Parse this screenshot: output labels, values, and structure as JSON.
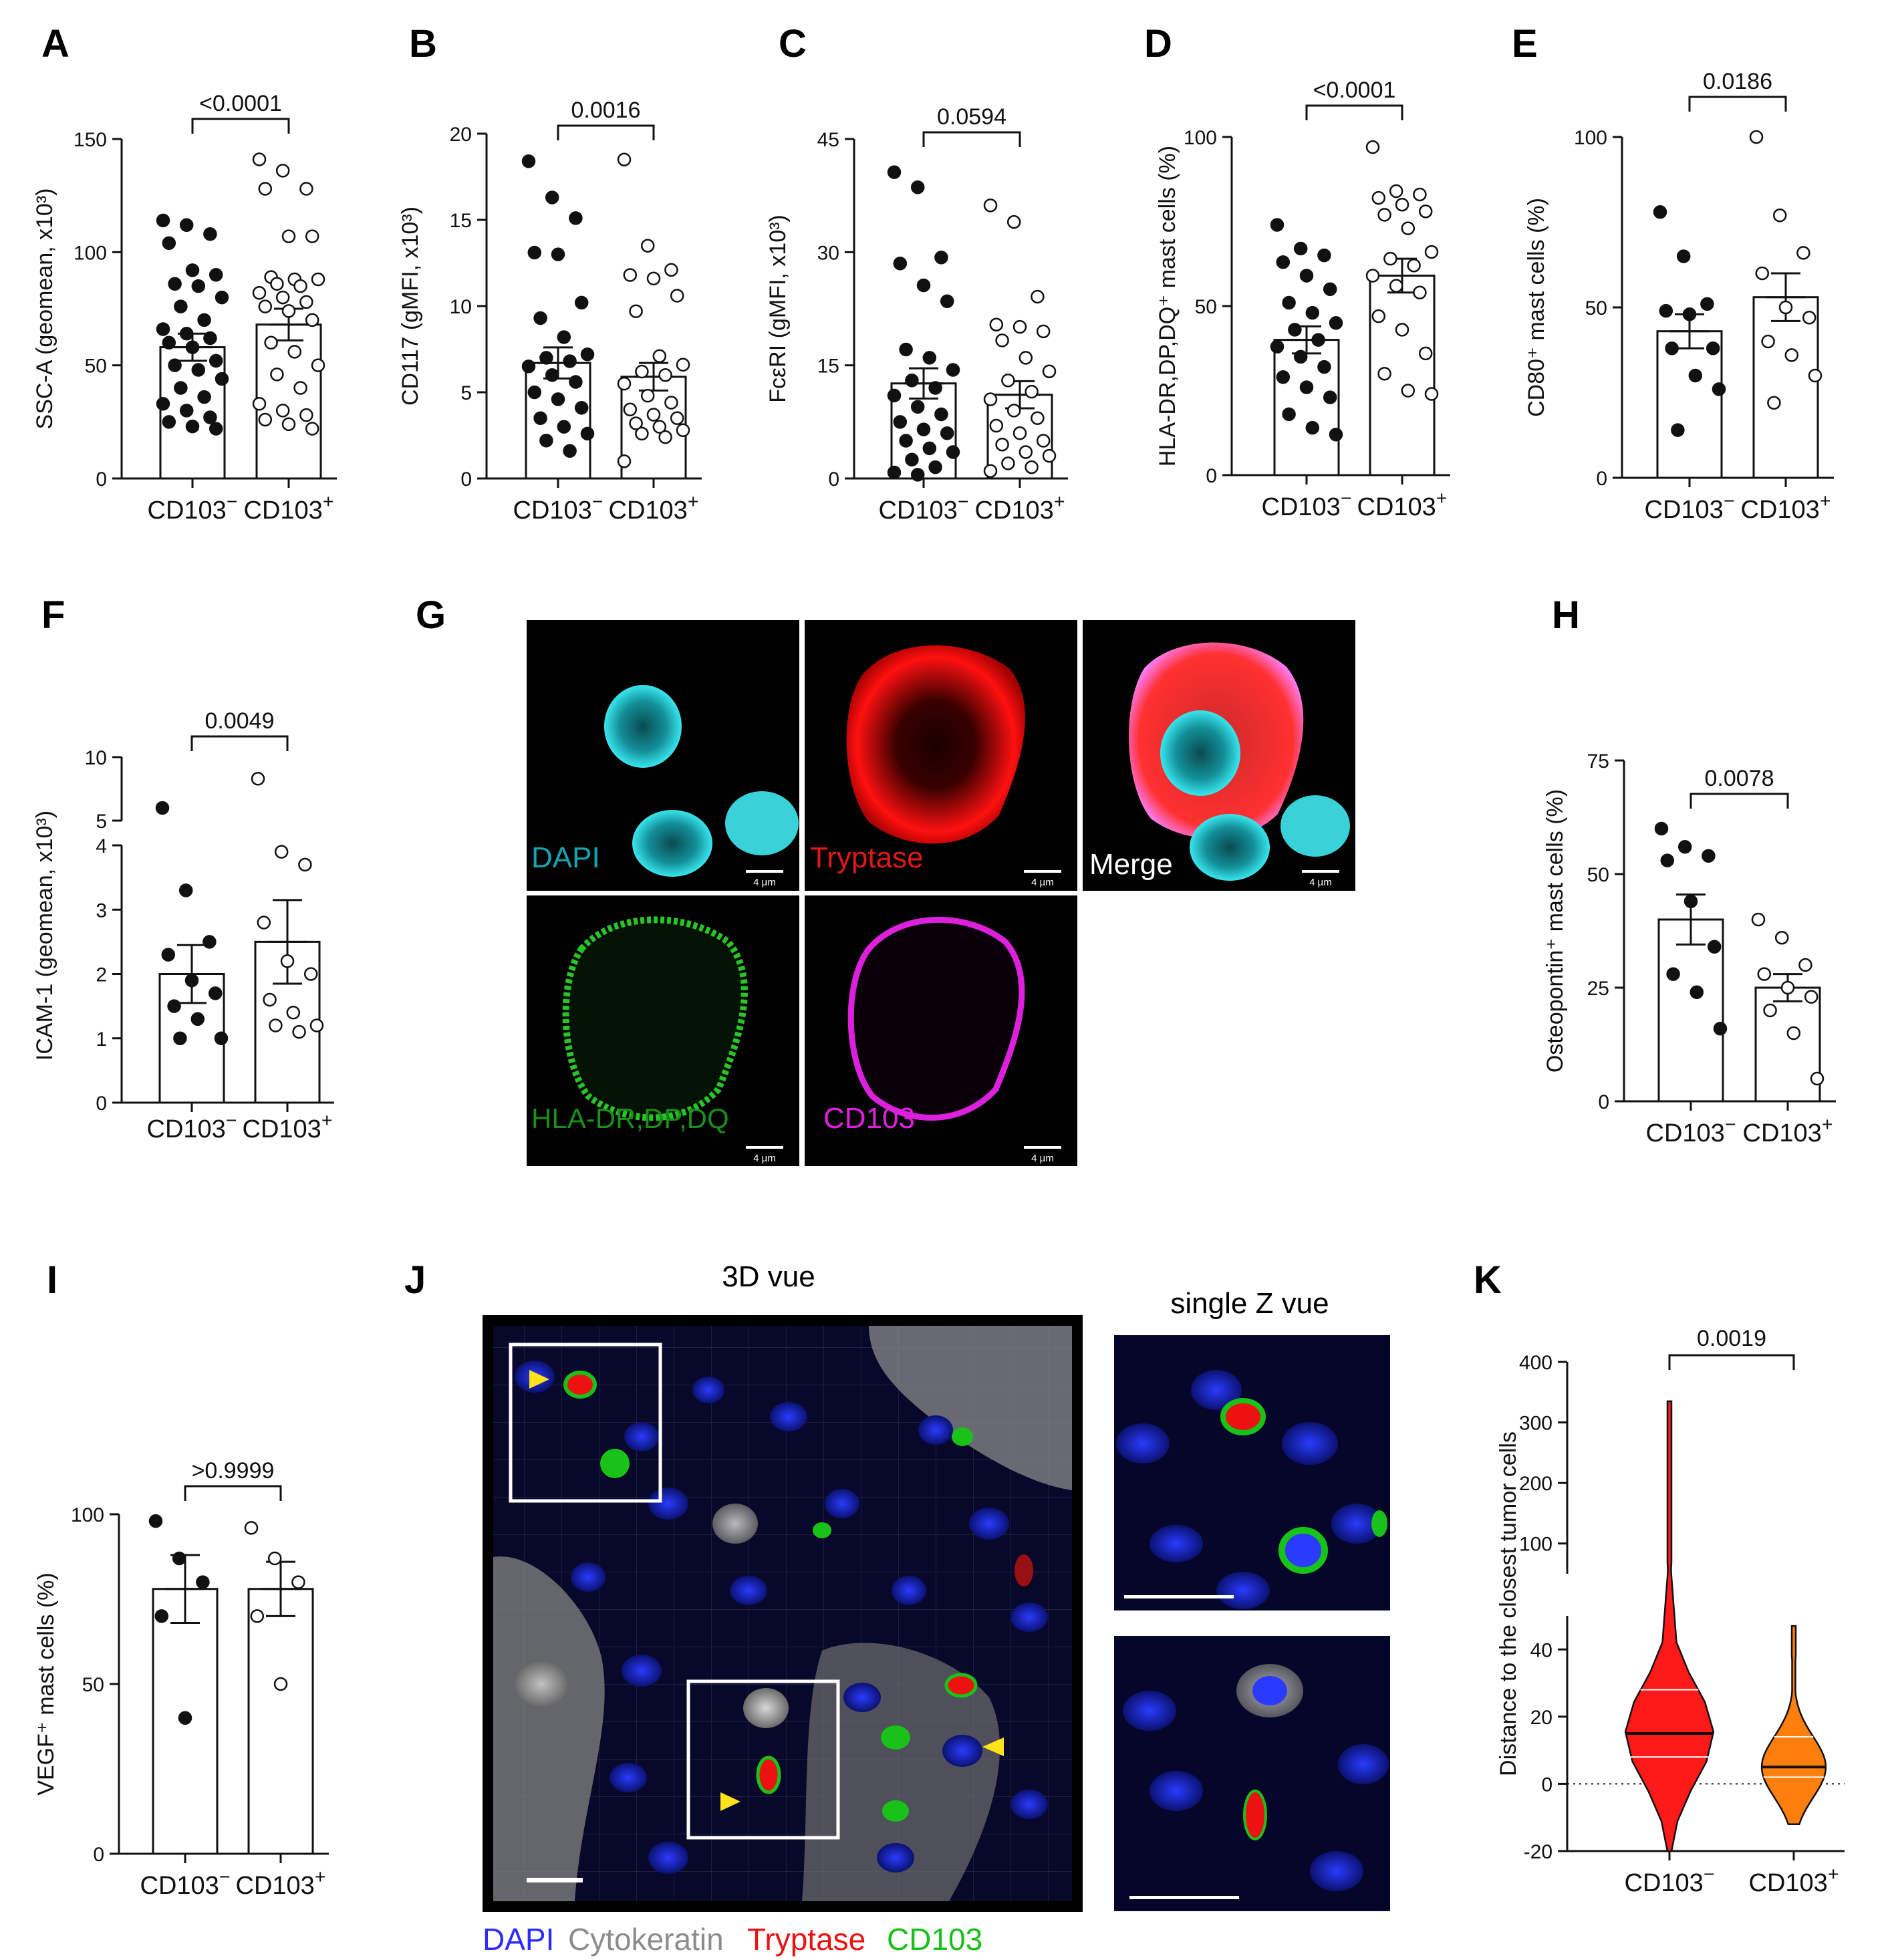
{
  "colors": {
    "black": "#111111",
    "white": "#ffffff",
    "cd103_neg_violin": "#ff1a1a",
    "cd103_pos_violin": "#ff7f0e",
    "dapi": "#00c8d2",
    "tryptase": "#ff1a1a",
    "hla": "#22c022",
    "cd103_stain": "#e020e0",
    "legend_dapi": "#2b2bff",
    "legend_cytokeratin": "#8c8c8c",
    "legend_tryptase": "#ee1111",
    "legend_cd103": "#16c016"
  },
  "panels": {
    "A": "A",
    "B": "B",
    "C": "C",
    "D": "D",
    "E": "E",
    "F": "F",
    "G": "G",
    "H": "H",
    "I": "I",
    "J": "J",
    "K": "K"
  },
  "categories": [
    "CD103",
    "CD103"
  ],
  "superscripts": [
    "−",
    "+"
  ],
  "chart_data": [
    {
      "panel": "A",
      "type": "bar",
      "ylabel": "SSC-A (geomean, x10³)",
      "ylim": [
        0,
        150
      ],
      "yticks": [
        0,
        50,
        100,
        150
      ],
      "pvalue": "<0.0001",
      "series": [
        {
          "mean": 58,
          "sem": 6,
          "fill": "black",
          "points": [
            114,
            112,
            108,
            104,
            92,
            90,
            86,
            85,
            80,
            76,
            70,
            66,
            64,
            62,
            60,
            58,
            52,
            50,
            48,
            44,
            40,
            36,
            33,
            30,
            27,
            25,
            23,
            22
          ]
        },
        {
          "mean": 68,
          "sem": 7,
          "fill": "white",
          "points": [
            141,
            136,
            128,
            128,
            107,
            107,
            89,
            88,
            88,
            86,
            85,
            82,
            80,
            78,
            76,
            74,
            70,
            60,
            56,
            50,
            46,
            40,
            33,
            30,
            28,
            26,
            24,
            22
          ]
        }
      ]
    },
    {
      "panel": "B",
      "type": "bar",
      "ylabel": "CD117 (gMFI, x10³)",
      "ylim": [
        0,
        20
      ],
      "yticks": [
        0,
        5,
        10,
        15,
        20
      ],
      "pvalue": "0.0016",
      "series": [
        {
          "mean": 6.7,
          "sem": 0.9,
          "fill": "black",
          "points": [
            18.4,
            16.3,
            15.1,
            13.1,
            13.0,
            10.2,
            9.3,
            8.2,
            7.2,
            7.0,
            6.8,
            6.5,
            6.0,
            5.6,
            5.0,
            4.6,
            4.1,
            3.5,
            3.0,
            2.6,
            2.2,
            1.6
          ]
        },
        {
          "mean": 5.9,
          "sem": 0.8,
          "fill": "white",
          "points": [
            18.5,
            13.5,
            12.1,
            11.8,
            11.6,
            10.6,
            9.7,
            7.1,
            6.6,
            6.2,
            6.0,
            5.5,
            4.8,
            4.4,
            4.0,
            3.7,
            3.5,
            3.2,
            3.0,
            2.8,
            2.6,
            2.4,
            1.0
          ]
        }
      ]
    },
    {
      "panel": "C",
      "type": "bar",
      "ylabel": "FcεRI (gMFI, x10³)",
      "ylim": [
        0,
        45
      ],
      "yticks": [
        0,
        15,
        30,
        45
      ],
      "pvalue": "0.0594",
      "series": [
        {
          "mean": 12.6,
          "sem": 2.0,
          "fill": "black",
          "points": [
            40.6,
            38.6,
            29.3,
            28.5,
            25.6,
            23.5,
            17.1,
            16.0,
            14.4,
            13.0,
            12.0,
            11.0,
            9.5,
            8.5,
            7.5,
            6.5,
            6.0,
            5.0,
            4.0,
            3.5,
            2.5,
            1.5,
            0.8,
            0.5
          ]
        },
        {
          "mean": 11.1,
          "sem": 1.8,
          "fill": "white",
          "points": [
            36.2,
            34.0,
            24.1,
            20.4,
            20.1,
            19.5,
            18.3,
            16.0,
            14.2,
            13.0,
            11.5,
            10.5,
            9.0,
            8.0,
            7.0,
            6.0,
            5.0,
            4.5,
            3.5,
            3.0,
            2.0,
            1.5,
            1.0
          ]
        }
      ]
    },
    {
      "panel": "D",
      "type": "bar",
      "ylabel": "HLA-DR,DP,DQ⁺ mast cells (%)",
      "ylim": [
        0,
        100
      ],
      "yticks": [
        0,
        50,
        100
      ],
      "pvalue": "<0.0001",
      "series": [
        {
          "mean": 40,
          "sem": 4,
          "fill": "black",
          "points": [
            74,
            67,
            65,
            63,
            59,
            55,
            51,
            48,
            45,
            43,
            40,
            38,
            35,
            32,
            29,
            26,
            23,
            18,
            14,
            12
          ]
        },
        {
          "mean": 59,
          "sem": 5,
          "fill": "white",
          "points": [
            97,
            84,
            83,
            82,
            80,
            78,
            77,
            73,
            66,
            64,
            62,
            59,
            56,
            54,
            47,
            43,
            36,
            30,
            25,
            24
          ]
        }
      ]
    },
    {
      "panel": "E",
      "type": "bar",
      "ylabel": "CD80⁺ mast cells (%)",
      "ylim": [
        0,
        100
      ],
      "yticks": [
        0,
        50,
        100
      ],
      "pvalue": "0.0186",
      "series": [
        {
          "mean": 43,
          "sem": 5,
          "fill": "black",
          "points": [
            78,
            65,
            51,
            49,
            48,
            38,
            38,
            30,
            26,
            14
          ]
        },
        {
          "mean": 53,
          "sem": 7,
          "fill": "white",
          "points": [
            100,
            77,
            66,
            60,
            50,
            47,
            40,
            36,
            30,
            22
          ]
        }
      ]
    },
    {
      "panel": "F",
      "type": "bar",
      "ylabel": "ICAM-1 (geomean, x10³)",
      "yaxis": "broken",
      "yticks": [
        0,
        1,
        2,
        3,
        4,
        5,
        10
      ],
      "pvalue": "0.0049",
      "series": [
        {
          "mean": 2.0,
          "sem": 0.45,
          "fill": "black",
          "points": [
            6.0,
            3.3,
            2.5,
            2.3,
            1.9,
            1.7,
            1.5,
            1.3,
            1.0,
            1.0
          ]
        },
        {
          "mean": 2.5,
          "sem": 0.65,
          "fill": "white",
          "points": [
            8.3,
            3.9,
            3.7,
            2.8,
            2.2,
            2.0,
            1.6,
            1.4,
            1.2,
            1.2,
            1.1
          ]
        }
      ]
    },
    {
      "panel": "H",
      "type": "bar",
      "ylabel": "Osteopontin⁺ mast cells (%)",
      "ylim": [
        0,
        75
      ],
      "yticks": [
        0,
        25,
        50,
        75
      ],
      "pvalue": "0.0078",
      "series": [
        {
          "mean": 40,
          "sem": 5.5,
          "fill": "black",
          "points": [
            60,
            56,
            54,
            53,
            44,
            34,
            28,
            24,
            16
          ]
        },
        {
          "mean": 25,
          "sem": 3,
          "fill": "white",
          "points": [
            40,
            36,
            30,
            28,
            25,
            23,
            20,
            15,
            5
          ]
        }
      ]
    },
    {
      "panel": "I",
      "type": "bar",
      "ylabel": "VEGF⁺ mast cells (%)",
      "ylim": [
        0,
        100
      ],
      "yticks": [
        0,
        50,
        100
      ],
      "pvalue": ">0.9999",
      "series": [
        {
          "mean": 78,
          "sem": 10,
          "fill": "black",
          "points": [
            98,
            87,
            80,
            70,
            40
          ]
        },
        {
          "mean": 78,
          "sem": 8,
          "fill": "white",
          "points": [
            96,
            87,
            80,
            70,
            50
          ]
        }
      ]
    },
    {
      "panel": "K",
      "type": "violin",
      "ylabel": "Distance to the closest tumor cells",
      "yaxis": "broken",
      "yticks": [
        -20,
        0,
        20,
        40,
        100,
        200,
        300,
        400
      ],
      "pvalue": "0.0019",
      "series": [
        {
          "median": 15,
          "q1": 8,
          "q3": 28,
          "min": -20,
          "max": 335,
          "color": "red"
        },
        {
          "median": 5,
          "q1": 2,
          "q3": 14,
          "min": -12,
          "max": 47,
          "color": "orange"
        }
      ]
    }
  ],
  "images": {
    "G": {
      "tiles": [
        "DAPI",
        "Tryptase",
        "Merge",
        "HLA-DR,DP,DQ",
        "CD103"
      ],
      "scalebar": "4 µm"
    },
    "J": {
      "title_3d": "3D vue",
      "title_single": "single Z vue",
      "legend": [
        "DAPI",
        "Cytokeratin",
        "Tryptase",
        "CD103"
      ]
    }
  }
}
